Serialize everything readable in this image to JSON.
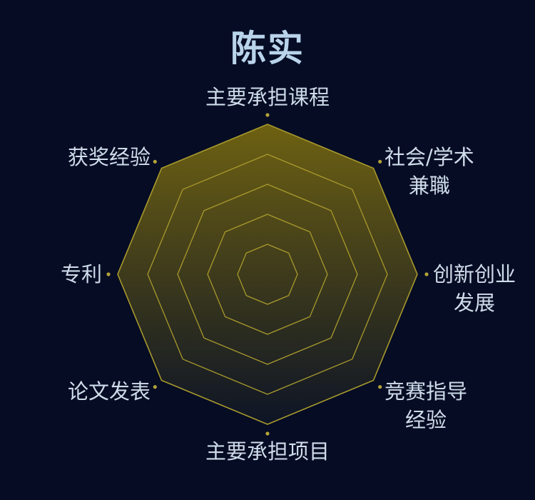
{
  "chart_data": {
    "type": "radar",
    "title": "陈实",
    "indicators": [
      {
        "label_lines": [
          "主要承担课程"
        ]
      },
      {
        "label_lines": [
          "社会/学术",
          "兼職"
        ]
      },
      {
        "label_lines": [
          "创新创业",
          "发展"
        ]
      },
      {
        "label_lines": [
          "竞赛指导",
          "经验"
        ]
      },
      {
        "label_lines": [
          "主要承担项目"
        ]
      },
      {
        "label_lines": [
          "论文发表"
        ]
      },
      {
        "label_lines": [
          "专利"
        ]
      },
      {
        "label_lines": [
          "获奖经验"
        ]
      }
    ],
    "rings": 5,
    "grid": true,
    "legend": "none",
    "colors": {
      "background": "#050c24",
      "area_top": "#6e6112",
      "area_bottom": "#0d1426",
      "grid_line": "#a8992c",
      "dot": "#b3a339",
      "title": "#b9d4ea",
      "label": "#cfdcea"
    }
  }
}
